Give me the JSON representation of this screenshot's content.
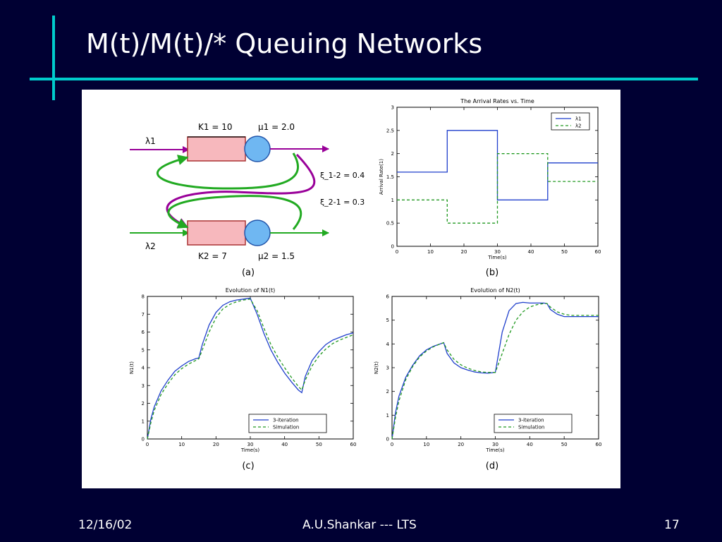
{
  "slide": {
    "title": "M(t)/M(t)/* Queuing Networks",
    "footer": {
      "date": "12/16/02",
      "author": "A.U.Shankar   --- LTS",
      "page": "17"
    }
  },
  "colors": {
    "background": "#000033",
    "accent_rule": "#00cccc",
    "queue_buffer_fill": "#f7b8bd",
    "server_fill": "#6fb7f2",
    "green_arrow": "#22aa22",
    "purple_arrow": "#990099",
    "series_solid": "#1f3fcc",
    "series_dashed": "#229922"
  },
  "diagram": {
    "lambda1": "λ1",
    "lambda2": "λ2",
    "k1": "K1 = 10",
    "mu1": "μ1 = 2.0",
    "k2": "K2 = 7",
    "mu2": "μ2 = 1.5",
    "p12": "ξ_1-2 = 0.4",
    "p21": "ξ_2-1 = 0.3",
    "caption": "(a)"
  },
  "chart_data": [
    {
      "id": "b",
      "type": "line",
      "title": "The Arrival Rates vs. Time",
      "xlabel": "Time(s)",
      "ylabel": "Arrival Rate(1)",
      "xlim": [
        0,
        60
      ],
      "ylim": [
        0,
        3
      ],
      "xticks": [
        "0",
        "10",
        "20",
        "30",
        "40",
        "50",
        "60"
      ],
      "yticks": [
        "0",
        "0.5",
        "1",
        "1.5",
        "2",
        "2.5",
        "3"
      ],
      "legend_position": "top-right",
      "legend_labels": [
        "λ1",
        "λ2"
      ],
      "caption": "(b)",
      "series": [
        {
          "style": "solid",
          "x": [
            0,
            15,
            15,
            30,
            30,
            45,
            45,
            60
          ],
          "y": [
            1.6,
            1.6,
            2.5,
            2.5,
            1.0,
            1.0,
            1.8,
            1.8
          ]
        },
        {
          "style": "dashed",
          "x": [
            0,
            15,
            15,
            30,
            30,
            45,
            45,
            60
          ],
          "y": [
            1.0,
            1.0,
            0.5,
            0.5,
            2.0,
            2.0,
            1.4,
            1.4
          ]
        }
      ]
    },
    {
      "id": "c",
      "type": "line",
      "title": "Evolution of N1(t)",
      "xlabel": "Time(s)",
      "ylabel": "N1(t)",
      "xlim": [
        0,
        60
      ],
      "ylim": [
        0,
        8
      ],
      "xticks": [
        "0",
        "10",
        "20",
        "30",
        "40",
        "50",
        "60"
      ],
      "yticks": [
        "0",
        "1",
        "2",
        "3",
        "4",
        "5",
        "6",
        "7",
        "8"
      ],
      "legend_position": "bottom-right",
      "caption": "(c)",
      "series": [
        {
          "name": "3-iteration",
          "style": "solid",
          "x": [
            0,
            1,
            2,
            4,
            6,
            8,
            10,
            12,
            14,
            15,
            16,
            18,
            20,
            22,
            24,
            26,
            28,
            30,
            32,
            34,
            36,
            38,
            40,
            42,
            44,
            45,
            46,
            48,
            50,
            52,
            54,
            56,
            58,
            60
          ],
          "y": [
            0,
            1.1,
            1.8,
            2.7,
            3.3,
            3.8,
            4.1,
            4.35,
            4.5,
            4.55,
            5.3,
            6.4,
            7.1,
            7.5,
            7.7,
            7.8,
            7.85,
            7.9,
            7.0,
            5.9,
            5.0,
            4.3,
            3.7,
            3.2,
            2.75,
            2.6,
            3.5,
            4.4,
            4.9,
            5.3,
            5.55,
            5.7,
            5.85,
            5.95
          ]
        },
        {
          "name": "Simulation",
          "style": "dashed",
          "x": [
            0,
            1,
            2,
            4,
            6,
            8,
            10,
            12,
            14,
            15,
            16,
            18,
            20,
            22,
            24,
            26,
            28,
            30,
            32,
            34,
            36,
            38,
            40,
            42,
            44,
            45,
            46,
            48,
            50,
            52,
            54,
            56,
            58,
            60
          ],
          "y": [
            0,
            0.9,
            1.6,
            2.5,
            3.1,
            3.6,
            3.95,
            4.2,
            4.4,
            4.5,
            5.0,
            6.0,
            6.8,
            7.3,
            7.55,
            7.7,
            7.8,
            7.85,
            7.2,
            6.2,
            5.3,
            4.6,
            4.0,
            3.45,
            2.95,
            2.75,
            3.3,
            4.1,
            4.65,
            5.05,
            5.35,
            5.55,
            5.7,
            5.85
          ]
        }
      ]
    },
    {
      "id": "d",
      "type": "line",
      "title": "Evolution of N2(t)",
      "xlabel": "Time(s)",
      "ylabel": "N2(t)",
      "xlim": [
        0,
        60
      ],
      "ylim": [
        0,
        6
      ],
      "xticks": [
        "0",
        "10",
        "20",
        "30",
        "40",
        "50",
        "60"
      ],
      "yticks": [
        "0",
        "1",
        "2",
        "3",
        "4",
        "5",
        "6"
      ],
      "legend_position": "bottom-right",
      "caption": "(d)",
      "series": [
        {
          "name": "3-iteration",
          "style": "solid",
          "x": [
            0,
            1,
            2,
            4,
            6,
            8,
            10,
            12,
            14,
            15,
            16,
            18,
            20,
            22,
            24,
            26,
            28,
            30,
            32,
            34,
            36,
            38,
            40,
            42,
            44,
            45,
            46,
            48,
            50,
            52,
            54,
            56,
            58,
            60
          ],
          "y": [
            0,
            1.1,
            1.8,
            2.6,
            3.1,
            3.5,
            3.75,
            3.9,
            4.0,
            4.05,
            3.6,
            3.2,
            3.0,
            2.9,
            2.82,
            2.78,
            2.77,
            2.8,
            4.5,
            5.4,
            5.7,
            5.75,
            5.72,
            5.72,
            5.72,
            5.7,
            5.45,
            5.25,
            5.15,
            5.15,
            5.15,
            5.15,
            5.15,
            5.15
          ]
        },
        {
          "name": "Simulation",
          "style": "dashed",
          "x": [
            0,
            1,
            2,
            4,
            6,
            8,
            10,
            12,
            14,
            15,
            16,
            18,
            20,
            22,
            24,
            26,
            28,
            30,
            32,
            34,
            36,
            38,
            40,
            42,
            44,
            45,
            46,
            48,
            50,
            52,
            54,
            56,
            58,
            60
          ],
          "y": [
            0,
            0.9,
            1.6,
            2.5,
            3.05,
            3.45,
            3.7,
            3.88,
            4.0,
            4.05,
            3.75,
            3.35,
            3.12,
            2.98,
            2.88,
            2.82,
            2.8,
            2.8,
            3.6,
            4.4,
            5.0,
            5.35,
            5.55,
            5.65,
            5.7,
            5.7,
            5.55,
            5.35,
            5.25,
            5.2,
            5.2,
            5.2,
            5.2,
            5.2
          ]
        }
      ]
    }
  ]
}
